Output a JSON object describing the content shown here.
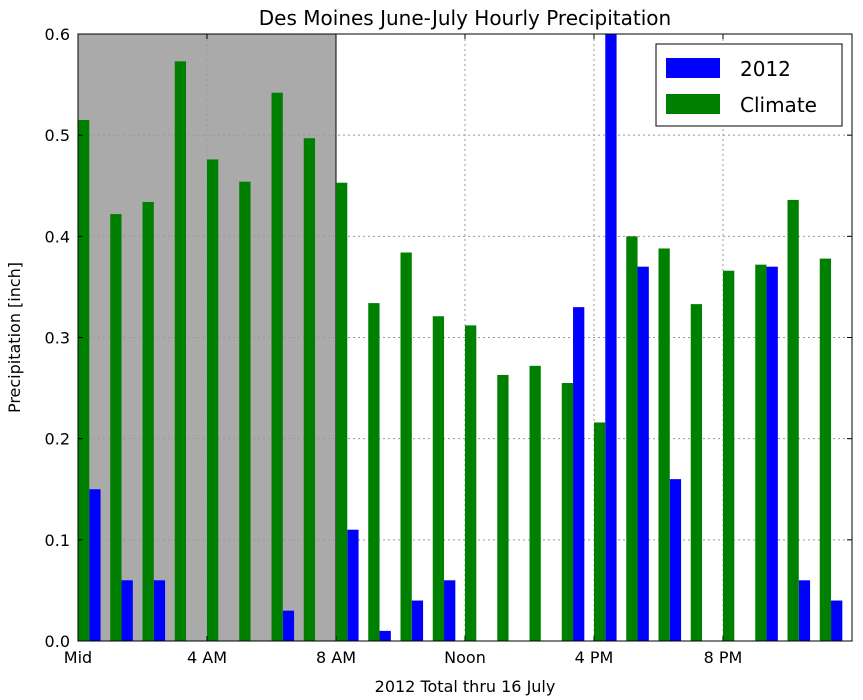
{
  "chart_data": {
    "type": "bar",
    "title": "Des Moines June-July Hourly Precipitation",
    "xlabel": "2012 Total thru 16 July",
    "ylabel": "Precipitation [inch]",
    "ylim": [
      0,
      0.6
    ],
    "yticks": [
      "0.0",
      "0.1",
      "0.2",
      "0.3",
      "0.4",
      "0.5",
      "0.6"
    ],
    "xtick_labels": [
      {
        "hour": 0,
        "label": "Mid"
      },
      {
        "hour": 4,
        "label": "4 AM"
      },
      {
        "hour": 8,
        "label": "8 AM"
      },
      {
        "hour": 12,
        "label": "Noon"
      },
      {
        "hour": 16,
        "label": "4 PM"
      },
      {
        "hour": 20,
        "label": "8 PM"
      }
    ],
    "grid": true,
    "legend_position": "top-right",
    "shaded_region_hours": [
      0,
      8
    ],
    "shaded_color": "#aaaaaa",
    "categories": [
      0,
      1,
      2,
      3,
      4,
      5,
      6,
      7,
      8,
      9,
      10,
      11,
      12,
      13,
      14,
      15,
      16,
      17,
      18,
      19,
      20,
      21,
      22,
      23
    ],
    "series": [
      {
        "name": "2012",
        "color": "#0000ff",
        "values": [
          0.15,
          0.06,
          0.06,
          0.0,
          0.0,
          0.0,
          0.03,
          0.0,
          0.11,
          0.01,
          0.04,
          0.06,
          0.0,
          0.0,
          0.0,
          0.33,
          0.6,
          0.37,
          0.16,
          0.0,
          0.0,
          0.37,
          0.06,
          0.04
        ]
      },
      {
        "name": "Climate",
        "color": "#008000",
        "values": [
          0.515,
          0.422,
          0.434,
          0.573,
          0.476,
          0.454,
          0.542,
          0.497,
          0.453,
          0.334,
          0.384,
          0.321,
          0.312,
          0.263,
          0.272,
          0.255,
          0.216,
          0.4,
          0.388,
          0.333,
          0.366,
          0.372,
          0.436,
          0.378
        ]
      }
    ]
  }
}
